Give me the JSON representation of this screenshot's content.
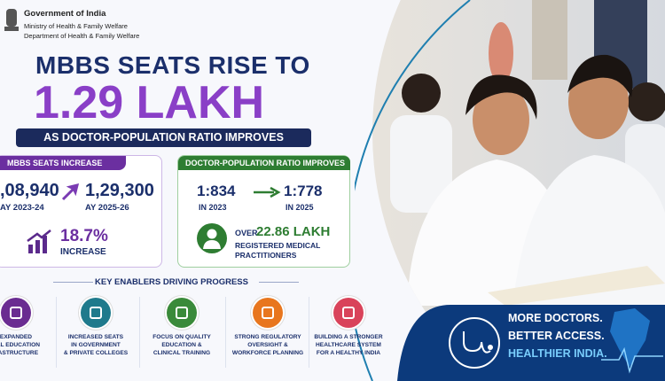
{
  "header": {
    "org": "Government of India",
    "ministry": "Ministry of Health & Family Welfare",
    "department": "Department of Health & Family Welfare"
  },
  "headline": {
    "line1": "MBBS SEATS RISE TO",
    "line2": "1.29 LAKH",
    "subtitle": "AS DOCTOR-POPULATION RATIO IMPROVES"
  },
  "seats": {
    "tag": "MBBS SEATS INCREASE",
    "before": ",08,940",
    "before_year": "AY 2023-24",
    "after": "1,29,300",
    "after_year": "AY 2025-26",
    "growth": "18.7%",
    "growth_label": "INCREASE"
  },
  "ratio": {
    "tag": "DOCTOR-POPULATION RATIO IMPROVES",
    "before": "1:834",
    "before_year": "IN 2023",
    "after": "1:778",
    "after_year": "IN 2025",
    "over": "OVER",
    "count": "22.86 LAKH",
    "count_lines": [
      "REGISTERED MEDICAL",
      "PRACTITIONERS"
    ]
  },
  "enablers": {
    "title": "KEY ENABLERS DRIVING PROGRESS",
    "items": [
      {
        "lines": [
          "EXPANDED",
          "CAL EDUCATION",
          "RASTRUCTURE"
        ]
      },
      {
        "lines": [
          "INCREASED SEATS",
          "IN GOVERNMENT",
          "& PRIVATE COLLEGES"
        ]
      },
      {
        "lines": [
          "FOCUS ON QUALITY",
          "EDUCATION &",
          "CLINICAL TRAINING"
        ]
      },
      {
        "lines": [
          "STRONG REGULATORY",
          "OVERSIGHT &",
          "WORKFORCE PLANNING"
        ]
      },
      {
        "lines": [
          "BUILDING A STRONGER",
          "HEALTHCARE SYSTEM",
          "FOR A HEALTHY INDIA"
        ]
      }
    ]
  },
  "banner": {
    "lines": [
      "MORE DOCTORS.",
      "BETTER ACCESS.",
      "HEALTHIER INDIA."
    ]
  }
}
